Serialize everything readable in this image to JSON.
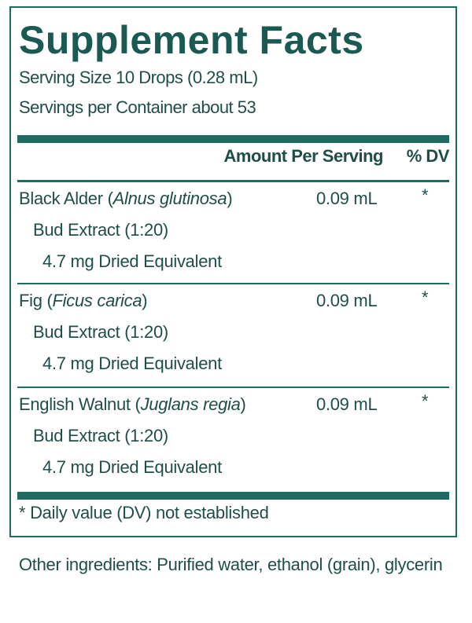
{
  "title": "Supplement Facts",
  "serving_size": "Serving Size 10 Drops (0.28 mL)",
  "servings_per_container": "Servings per Container about 53",
  "header": {
    "amount_per_serving": "Amount Per Serving",
    "dv": "% DV"
  },
  "ingredients": [
    {
      "name": "Black Alder",
      "latin": "Alnus glutinosa",
      "extract": "Bud Extract (1:20)",
      "equivalent": "4.7 mg Dried Equivalent",
      "amount": "0.09 mL",
      "dv": "*"
    },
    {
      "name": "Fig",
      "latin": "Ficus carica",
      "extract": "Bud Extract (1:20)",
      "equivalent": "4.7 mg Dried Equivalent",
      "amount": "0.09 mL",
      "dv": "*"
    },
    {
      "name": "English Walnut",
      "latin": "Juglans regia",
      "extract": "Bud Extract (1:20)",
      "equivalent": "4.7 mg Dried Equivalent",
      "amount": "0.09 mL",
      "dv": "*"
    }
  ],
  "footnote": "* Daily value (DV) not established",
  "other_ingredients": "Other ingredients: Purified water, ethanol (grain), glycerin",
  "colors": {
    "accent": "#1f6b62",
    "text": "#1f4e48"
  }
}
